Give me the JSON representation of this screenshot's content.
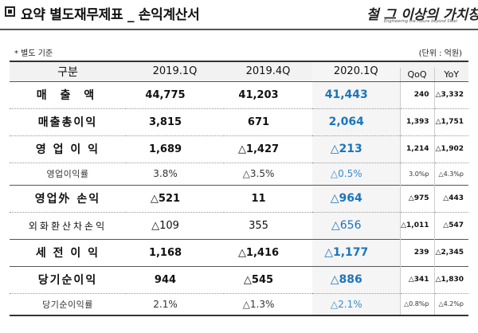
{
  "header": {
    "title": "요약 별도재무제표 _ 손익계산서",
    "logo_main": "철 그 이상의 가치창조",
    "logo_sub": "Engineering the Future beyond Steel"
  },
  "note": "* 별도 기준",
  "unit": "(단위 : 억원)",
  "table": {
    "headers": {
      "label": "구분",
      "p1": "2019.1Q",
      "p2": "2019.4Q",
      "p3": "2020.1Q",
      "qoq": "QoQ",
      "yoy": "YoY"
    },
    "rows": [
      {
        "label": "매   출   액",
        "p1": "44,775",
        "p2": "41,203",
        "p3": "41,443",
        "qoq": "240",
        "yoy": "△3,332"
      },
      {
        "label": "매출총이익",
        "p1": "3,815",
        "p2": "671",
        "p3": "2,064",
        "qoq": "1,393",
        "yoy": "△1,751"
      },
      {
        "label": "영 업 이 익",
        "p1": "1,689",
        "p2": "△1,427",
        "p3": "△213",
        "qoq": "1,214",
        "yoy": "△1,902"
      },
      {
        "label": "영업이익률",
        "p1": "3.8%",
        "p2": "△3.5%",
        "p3": "△0.5%",
        "qoq": "3.0%p",
        "yoy": "△4.3%p"
      },
      {
        "label": "영업外 손익",
        "p1": "△521",
        "p2": "11",
        "p3": "△964",
        "qoq": "△975",
        "yoy": "△443"
      },
      {
        "label": "외화환산차손익",
        "p1": "△109",
        "p2": "355",
        "p3": "△656",
        "qoq": "△1,011",
        "yoy": "△547"
      },
      {
        "label": "세 전 이 익",
        "p1": "1,168",
        "p2": "△1,416",
        "p3": "△1,177",
        "qoq": "239",
        "yoy": "△2,345"
      },
      {
        "label": "당기순이익",
        "p1": "944",
        "p2": "△545",
        "p3": "△886",
        "qoq": "△341",
        "yoy": "△1,830"
      },
      {
        "label": "당기순이익률",
        "p1": "2.1%",
        "p2": "△1.3%",
        "p3": "△2.1%",
        "qoq": "△0.8%p",
        "yoy": "△4.2%p"
      }
    ]
  },
  "colors": {
    "current_period": "#1b75bc",
    "header_bg": "#f2f2f2"
  }
}
